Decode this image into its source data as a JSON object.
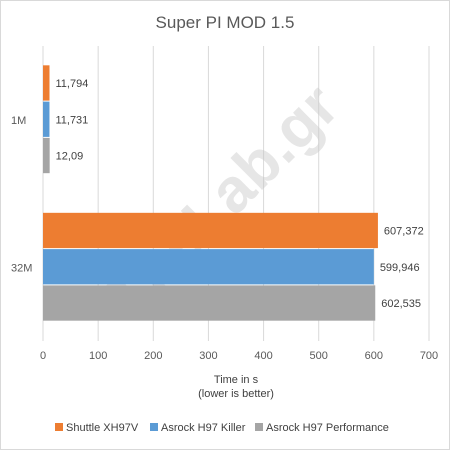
{
  "chart_data": {
    "type": "bar",
    "orientation": "horizontal",
    "title": "Super PI MOD 1.5",
    "xlabel_lines": [
      "Time in s",
      "(lower is better)"
    ],
    "categories": [
      "1M",
      "32M"
    ],
    "series": [
      {
        "name": "Shuttle XH97V",
        "color": "#ED7D31",
        "values": [
          11.794,
          607.372
        ],
        "labels": [
          "11,794",
          "607,372"
        ]
      },
      {
        "name": "Asrock H97 Killer",
        "color": "#5B9BD5",
        "values": [
          11.731,
          599.946
        ],
        "labels": [
          "11,731",
          "599,946"
        ]
      },
      {
        "name": "Asrock H97 Performance",
        "color": "#A5A5A5",
        "values": [
          12.09,
          602.535
        ],
        "labels": [
          "12,09",
          "602,535"
        ]
      }
    ],
    "xlim": [
      0,
      700
    ],
    "xticks": [
      "0",
      "100",
      "200",
      "300",
      "400",
      "500",
      "600",
      "700"
    ],
    "grid": true,
    "legend_position": "bottom",
    "watermark": "TheLab.gr"
  }
}
